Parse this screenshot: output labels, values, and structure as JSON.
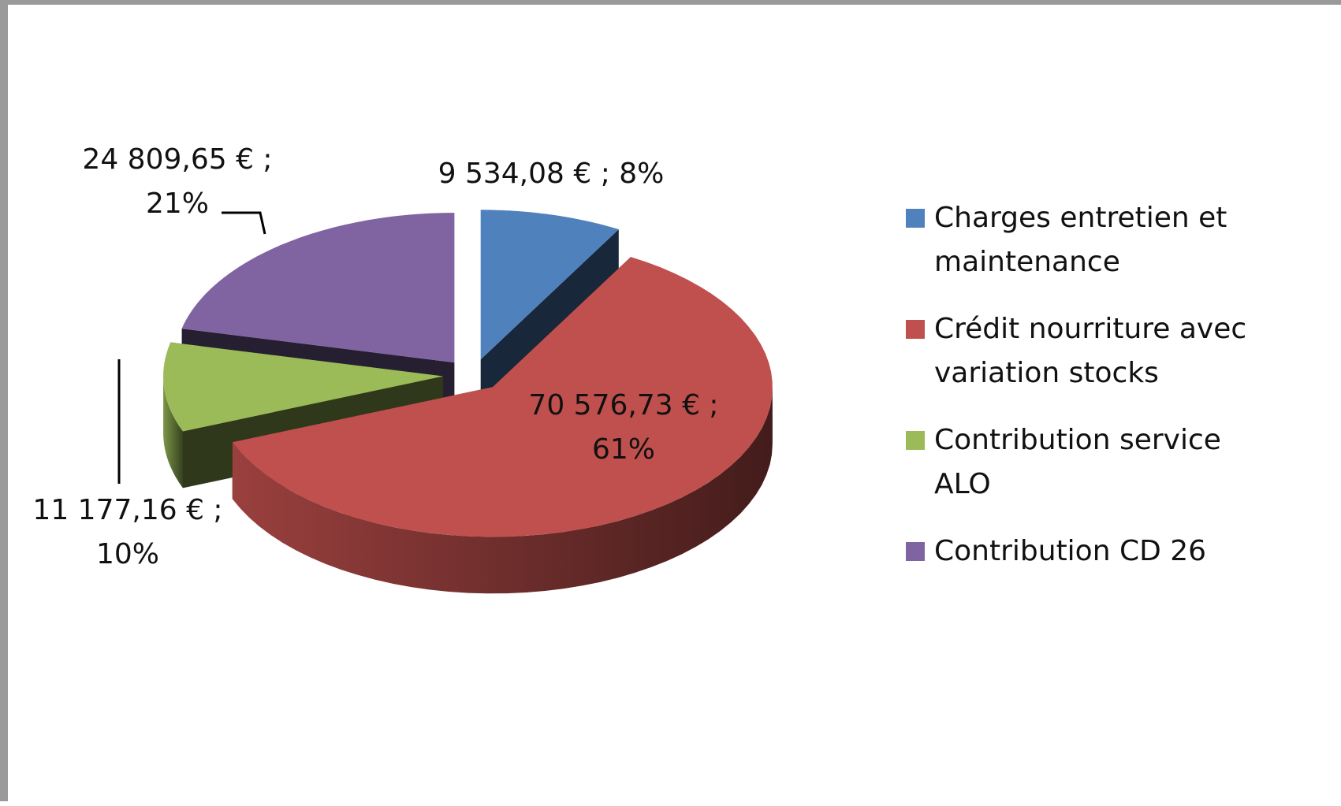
{
  "chart_data": {
    "type": "pie3d",
    "categories": [
      "Charges entretien et maintenance",
      "Crédit nourriture avec variation stocks",
      "Contribution service ALO",
      "Contribution CD 26"
    ],
    "values": [
      9534.08,
      70576.73,
      11177.16,
      24809.65
    ],
    "value_labels": [
      "9 534,08 € ; 8%",
      "70 576,73 € ; 61%",
      "11 177,16 € ; 10%",
      "24 809,65 € ; 21%"
    ],
    "colors": [
      "#4f81bd",
      "#c0504d",
      "#9bbb59",
      "#8064a2"
    ],
    "legend": "right"
  }
}
